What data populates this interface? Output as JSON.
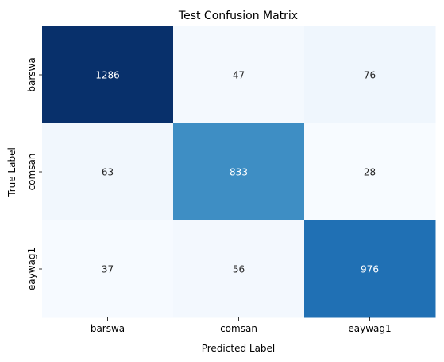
{
  "chart_data": {
    "type": "heatmap",
    "title": "Test Confusion Matrix",
    "xlabel": "Predicted Label",
    "ylabel": "True Label",
    "x_categories": [
      "barswa",
      "comsan",
      "eaywag1"
    ],
    "y_categories": [
      "barswa",
      "comsan",
      "eaywag1"
    ],
    "values": [
      [
        1286,
        47,
        76
      ],
      [
        63,
        833,
        28
      ],
      [
        37,
        56,
        976
      ]
    ],
    "colormap": "Blues",
    "value_range": [
      28,
      1286
    ],
    "colorbar": false
  }
}
